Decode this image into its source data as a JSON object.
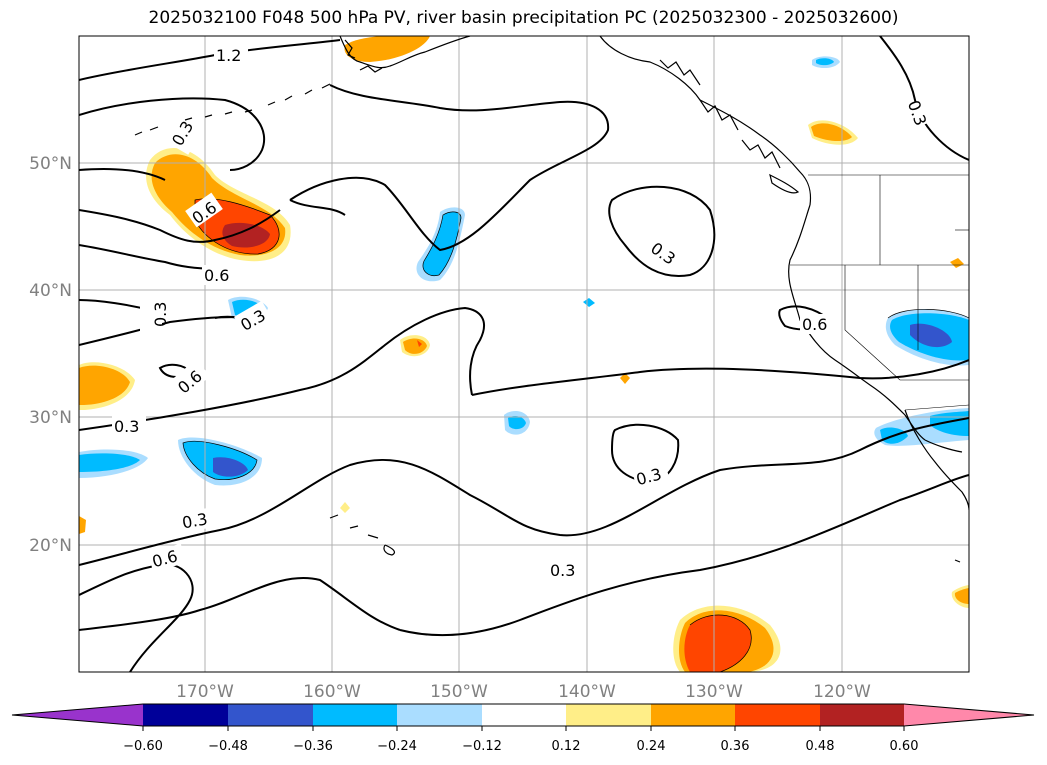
{
  "title": "2025032100 F048 500 hPa PV, river basin precipitation PC (2025032300 - 2025032600)",
  "map": {
    "lat_ticks": [
      "50°N",
      "40°N",
      "30°N",
      "20°N"
    ],
    "lon_ticks": [
      "170°W",
      "160°W",
      "150°W",
      "140°W",
      "130°W",
      "120°W"
    ],
    "grid_color": "#b0b0b0",
    "contour_labels": [
      "1.2",
      "0.3",
      "0.6",
      "0.6",
      "0.3",
      "0.3",
      "0.6",
      "0.3",
      "0.3",
      "0.3",
      "0.6",
      "0.3",
      "0.3",
      "0.6",
      "0.3"
    ]
  },
  "colorbar": {
    "colors": [
      "#9933cc",
      "#000099",
      "#3355cc",
      "#00bbff",
      "#aaddff",
      "#ffffff",
      "#ffee88",
      "#ffa500",
      "#ff4500",
      "#b22222",
      "#ff88aa"
    ],
    "tick_labels": [
      "−0.60",
      "−0.48",
      "−0.36",
      "−0.24",
      "−0.12",
      "0.12",
      "0.24",
      "0.36",
      "0.48",
      "0.60"
    ]
  }
}
